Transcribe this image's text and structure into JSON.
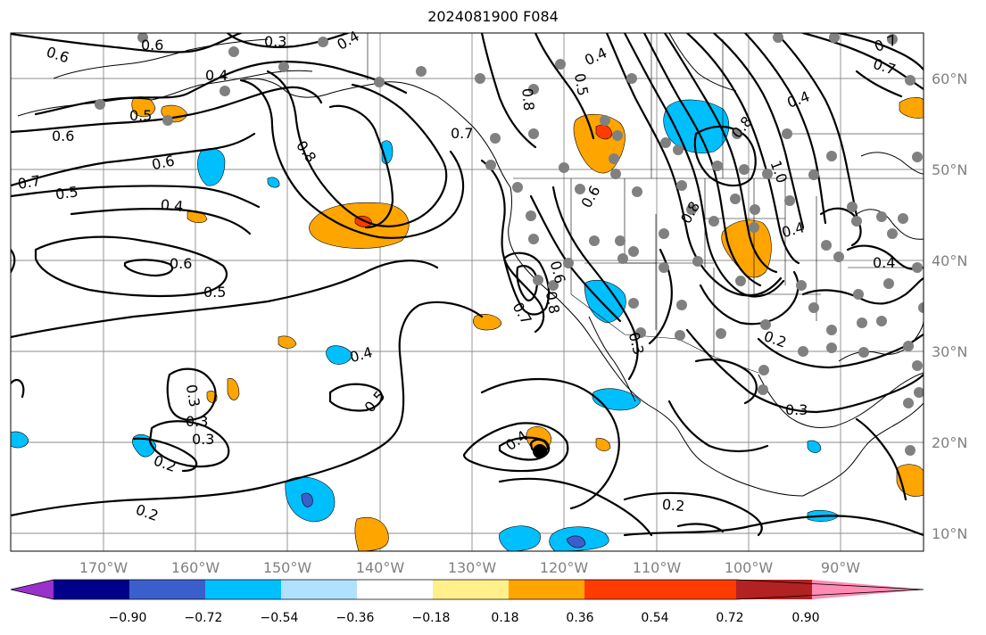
{
  "title": "2024081900 F084",
  "longitude_labels": [
    "170°W",
    "160°W",
    "150°W",
    "140°W",
    "130°W",
    "120°W",
    "110°W",
    "100°W",
    "90°W"
  ],
  "latitude_labels": [
    "60°N",
    "50°N",
    "40°N",
    "30°N",
    "20°N",
    "10°N"
  ],
  "colorbar": {
    "tick_labels": [
      "−0.90",
      "−0.72",
      "−0.54",
      "−0.36",
      "−0.18",
      "0.18",
      "0.36",
      "0.54",
      "0.72",
      "0.90"
    ],
    "colors": [
      "#9932cc",
      "#00008b",
      "#3a5fcd",
      "#00bfff",
      "#b0e2ff",
      "#ffffff",
      "#fff08c",
      "#ffa500",
      "#ff3c00",
      "#b22222",
      "#ff8cb4"
    ]
  },
  "contour_labels": [
    "0.6",
    "0.3",
    "0.4",
    "0.7",
    "0.6",
    "0.5",
    "0.6",
    "0.7",
    "0.5",
    "0.4",
    "0.8",
    "0.7",
    "0.8",
    "0.5",
    "0.4",
    "0.4",
    "0.7",
    "0.6",
    "0.6",
    "0.5",
    "0.4",
    "0.3",
    "0.5",
    "0.3",
    "0.3",
    "0.2",
    "0.4",
    "0.8",
    "0.7",
    "0.8",
    "0.6",
    "0.3",
    "0.6",
    "0.4",
    "1.0",
    "0.8",
    "0.2",
    "0.3",
    "0.4",
    "0.2",
    "0.2",
    "0.4"
  ],
  "colors": {
    "contour": "#000000",
    "grid": "#8c8c8c",
    "marker": "#808080",
    "axis_label": "#808080"
  }
}
